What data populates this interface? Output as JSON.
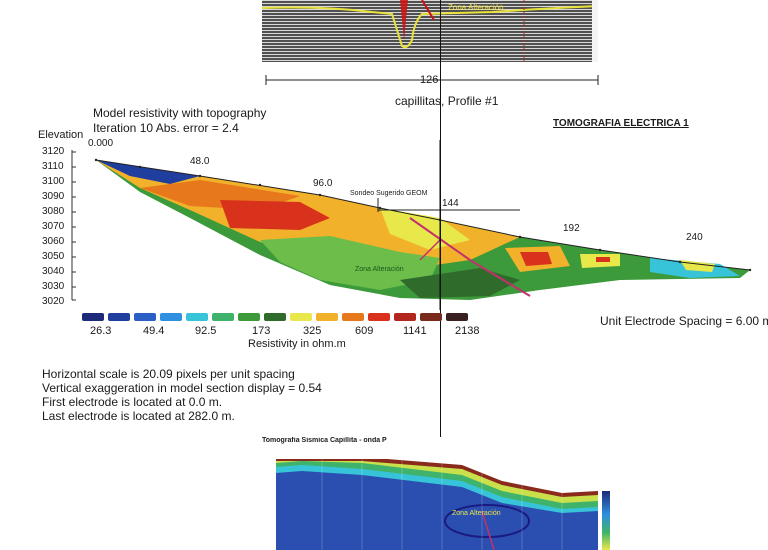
{
  "gpr_panel": {
    "zone_label": "Zona Alteración",
    "scale_value": "126",
    "profile_title": "capillitas, Profile #1"
  },
  "resistivity_panel": {
    "header_line1": "Model resistivity with topography",
    "header_line2": "Iteration 10 Abs. error = 2.4",
    "right_title": "TOMOGRAFIA ELECTRICA 1",
    "elevation_label": "Elevation",
    "elevation_ticks": [
      "3120",
      "3110",
      "3100",
      "3090",
      "3080",
      "3070",
      "3060",
      "3050",
      "3040",
      "3030",
      "3020"
    ],
    "distance_labels": [
      "0.000",
      "48.0",
      "96.0",
      "144",
      "192",
      "240"
    ],
    "sondeo_label": "Sondeo Sugerido GEOM",
    "zone_label": "Zona Alteración",
    "legend_values": [
      "26.3",
      "49.4",
      "92.5",
      "173",
      "325",
      "609",
      "1141",
      "2138"
    ],
    "legend_title": "Resistivity in ohm.m",
    "legend_colors": [
      "#1c2a78",
      "#1f3e9e",
      "#2a5fc8",
      "#2f8fe0",
      "#37c4d8",
      "#3fb36b",
      "#3d9a3a",
      "#2f6b2a",
      "#e8e84a",
      "#f2b12a",
      "#e8781c",
      "#d9321c",
      "#b2261e",
      "#7a2a1c",
      "#3a2020"
    ],
    "electrode_spacing": "Unit Electrode Spacing = 6.00 m",
    "notes": [
      "Horizontal scale is 20.09 pixels per unit spacing",
      "Vertical exaggeration in model section display = 0.54",
      "First electrode is located at 0.0  m.",
      "Last electrode is located at 282.0 m."
    ]
  },
  "seismic_panel": {
    "title": "Tomografia Sismica Capillita - onda P",
    "zone_label": "Zona Alteración"
  }
}
